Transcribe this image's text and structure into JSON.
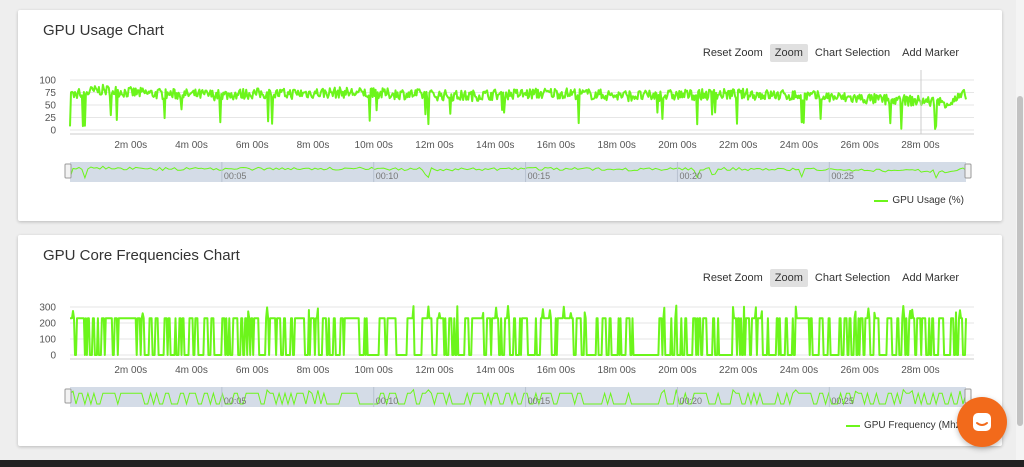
{
  "toolbar": {
    "reset_zoom": "Reset Zoom",
    "zoom": "Zoom",
    "chart_selection": "Chart Selection",
    "add_marker": "Add Marker"
  },
  "colors": {
    "series": "#6cf51b",
    "navigator_mask": "#c9d3e1",
    "chat": "#f26a1b"
  },
  "chat_icon": "chat-bubble-icon",
  "chart_data": [
    {
      "type": "line",
      "title": "GPU Usage Chart",
      "series": [
        {
          "name": "GPU Usage (%)"
        }
      ],
      "x_ticks": [
        "2m 00s",
        "4m 00s",
        "6m 00s",
        "8m 00s",
        "10m 00s",
        "12m 00s",
        "14m 00s",
        "16m 00s",
        "18m 00s",
        "20m 00s",
        "22m 00s",
        "24m 00s",
        "26m 00s",
        "28m 00s"
      ],
      "y_ticks": [
        "100",
        "75",
        "50",
        "25",
        "0"
      ],
      "ylim": [
        0,
        100
      ],
      "navigator_ticks": [
        "00:05",
        "00:10",
        "00:15",
        "00:20",
        "00:25"
      ],
      "grid": true,
      "legend_position": "bottom-right",
      "x_unit_minutes": [
        0,
        29.5
      ],
      "points_min": [
        0,
        1,
        2,
        3,
        4,
        5,
        6,
        7,
        8,
        9,
        10,
        11,
        12,
        13,
        14,
        15,
        16,
        17,
        18,
        19,
        20,
        21,
        22,
        23,
        24,
        25,
        26,
        27,
        28,
        29,
        29.5
      ],
      "values": [
        70,
        80,
        75,
        72,
        71,
        70,
        73,
        72,
        74,
        75,
        73,
        72,
        70,
        68,
        71,
        72,
        74,
        72,
        69,
        68,
        70,
        71,
        72,
        70,
        69,
        66,
        63,
        60,
        58,
        55,
        72
      ]
    },
    {
      "type": "line",
      "title": "GPU Core Frequencies Chart",
      "series": [
        {
          "name": "GPU Frequency (Mhz)"
        }
      ],
      "x_ticks": [
        "2m 00s",
        "4m 00s",
        "6m 00s",
        "8m 00s",
        "10m 00s",
        "12m 00s",
        "14m 00s",
        "16m 00s",
        "18m 00s",
        "20m 00s",
        "22m 00s",
        "24m 00s",
        "26m 00s",
        "28m 00s"
      ],
      "y_ticks": [
        "300",
        "200",
        "100",
        "0"
      ],
      "ylim": [
        0,
        300
      ],
      "navigator_ticks": [
        "00:05",
        "00:10",
        "00:15",
        "00:20",
        "00:25"
      ],
      "grid": true,
      "legend_position": "bottom-right",
      "x_unit_minutes": [
        0,
        29.5
      ],
      "high_value": 230,
      "low_value": 0
    }
  ]
}
